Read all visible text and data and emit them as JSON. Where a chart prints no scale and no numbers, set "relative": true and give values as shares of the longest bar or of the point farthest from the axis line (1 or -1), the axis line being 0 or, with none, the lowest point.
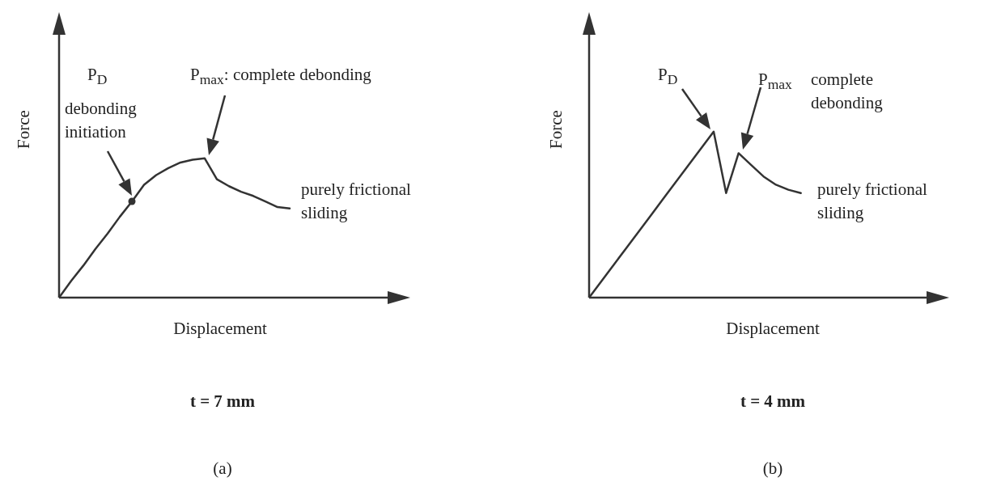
{
  "chart_data": [
    {
      "type": "line",
      "relative": true,
      "tick_labels": false,
      "xlabel": "Displacement",
      "ylabel": "Force",
      "categories": [
        null,
        null,
        null,
        null,
        null,
        null,
        null,
        null,
        null,
        null,
        null,
        null,
        null,
        null,
        null,
        null,
        null,
        null,
        null,
        null,
        null,
        null,
        null,
        null,
        null,
        null,
        null,
        null,
        null
      ],
      "series": [
        {
          "color": "#333333",
          "values": [
            0,
            0.12,
            0.23,
            0.35,
            0.46,
            0.58,
            0.69,
            0.81,
            0.88,
            0.93,
            0.97,
            0.99,
            1,
            0.85,
            0.8,
            0.76,
            0.73,
            0.69,
            0.65,
            0.64,
            null,
            null,
            null,
            null,
            null,
            null,
            null,
            null,
            null
          ]
        }
      ],
      "annotations": [
        "P$_{D}$",
        "debonding\ninitiation",
        "P$_{max}$: complete debonding",
        "purely frictional\nsliding",
        "t = 7 mm",
        "(a)"
      ]
    },
    {
      "type": "line",
      "relative": true,
      "tick_labels": false,
      "xlabel": "Displacement",
      "ylabel": "Force",
      "categories": [
        null,
        null,
        null,
        null,
        null,
        null,
        null,
        null,
        null,
        null,
        null,
        null,
        null,
        null,
        null,
        null,
        null,
        null,
        null,
        null,
        null,
        null,
        null,
        null,
        null,
        null,
        null,
        null,
        null
      ],
      "series": [
        {
          "color": "#333333",
          "values": [
            0,
            0.1,
            0.2,
            0.3,
            0.4,
            0.5,
            0.6,
            0.7,
            0.8,
            0.9,
            1,
            0.63,
            0.87,
            0.8,
            0.73,
            0.68,
            0.65,
            0.63,
            null,
            null,
            null,
            null,
            null,
            null,
            null,
            null,
            null,
            null,
            null
          ]
        }
      ],
      "annotations": [
        "P$_{D}$",
        "P$_{max}$",
        "complete\ndebonding",
        "purely frictional\nsliding",
        "t = 4 mm",
        "(b)"
      ]
    }
  ]
}
